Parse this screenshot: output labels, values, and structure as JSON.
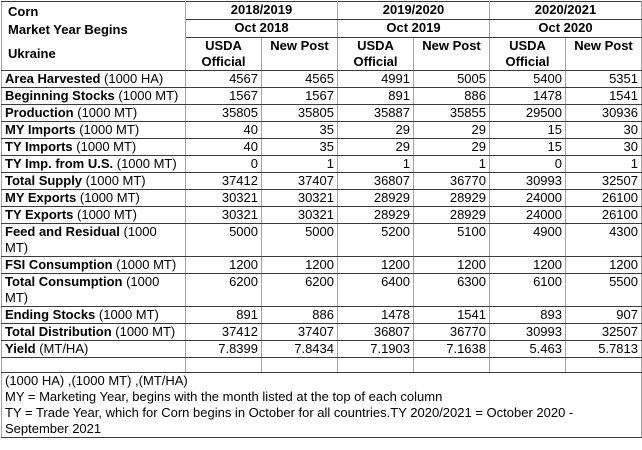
{
  "header": {
    "commodity": "Corn",
    "market_year_label": "Market Year Begins",
    "country": "Ukraine",
    "years": [
      {
        "label": "2018/2019",
        "begins": "Oct 2018"
      },
      {
        "label": "2019/2020",
        "begins": "Oct 2019"
      },
      {
        "label": "2020/2021",
        "begins": "Oct 2020"
      }
    ],
    "source_columns": [
      "USDA Official",
      "New Post"
    ]
  },
  "table": {
    "rows": [
      {
        "label": "Area Harvested",
        "unit": "(1000 HA)",
        "values": [
          "4567",
          "4565",
          "4991",
          "5005",
          "5400",
          "5351"
        ]
      },
      {
        "label": "Beginning Stocks",
        "unit": "(1000 MT)",
        "values": [
          "1567",
          "1567",
          "891",
          "886",
          "1478",
          "1541"
        ]
      },
      {
        "label": "Production",
        "unit": "(1000 MT)",
        "values": [
          "35805",
          "35805",
          "35887",
          "35855",
          "29500",
          "30936"
        ]
      },
      {
        "label": "MY Imports",
        "unit": "(1000 MT)",
        "values": [
          "40",
          "35",
          "29",
          "29",
          "15",
          "30"
        ]
      },
      {
        "label": "TY Imports",
        "unit": "(1000 MT)",
        "values": [
          "40",
          "35",
          "29",
          "29",
          "15",
          "30"
        ]
      },
      {
        "label": "TY Imp. from U.S.",
        "unit": "(1000 MT)",
        "values": [
          "0",
          "1",
          "1",
          "1",
          "0",
          "1"
        ]
      },
      {
        "label": "Total Supply",
        "unit": "(1000 MT)",
        "values": [
          "37412",
          "37407",
          "36807",
          "36770",
          "30993",
          "32507"
        ]
      },
      {
        "label": "MY Exports",
        "unit": "(1000 MT)",
        "values": [
          "30321",
          "30321",
          "28929",
          "28929",
          "24000",
          "26100"
        ]
      },
      {
        "label": "TY Exports",
        "unit": "(1000 MT)",
        "values": [
          "30321",
          "30321",
          "28929",
          "28929",
          "24000",
          "26100"
        ]
      },
      {
        "label": "Feed and Residual",
        "unit": "(1000 MT)",
        "values": [
          "5000",
          "5000",
          "5200",
          "5100",
          "4900",
          "4300"
        ]
      },
      {
        "label": "FSI Consumption",
        "unit": "(1000 MT)",
        "values": [
          "1200",
          "1200",
          "1200",
          "1200",
          "1200",
          "1200"
        ]
      },
      {
        "label": "Total Consumption",
        "unit": "(1000 MT)",
        "values": [
          "6200",
          "6200",
          "6400",
          "6300",
          "6100",
          "5500"
        ]
      },
      {
        "label": "Ending Stocks",
        "unit": "(1000 MT)",
        "values": [
          "891",
          "886",
          "1478",
          "1541",
          "893",
          "907"
        ]
      },
      {
        "label": "Total Distribution",
        "unit": "(1000 MT)",
        "values": [
          "37412",
          "37407",
          "36807",
          "36770",
          "30993",
          "32507"
        ]
      },
      {
        "label": "Yield",
        "unit": "(MT/HA)",
        "values": [
          "7.8399",
          "7.8434",
          "7.1903",
          "7.1638",
          "5.463",
          "5.7813"
        ]
      }
    ]
  },
  "notes": [
    "(1000 HA) ,(1000 MT) ,(MT/HA)",
    "MY = Marketing Year, begins with the month listed at the top of each column",
    "TY = Trade Year, which for Corn begins in October for all countries.TY 2020/2021 = October 2020 - September 2021"
  ]
}
